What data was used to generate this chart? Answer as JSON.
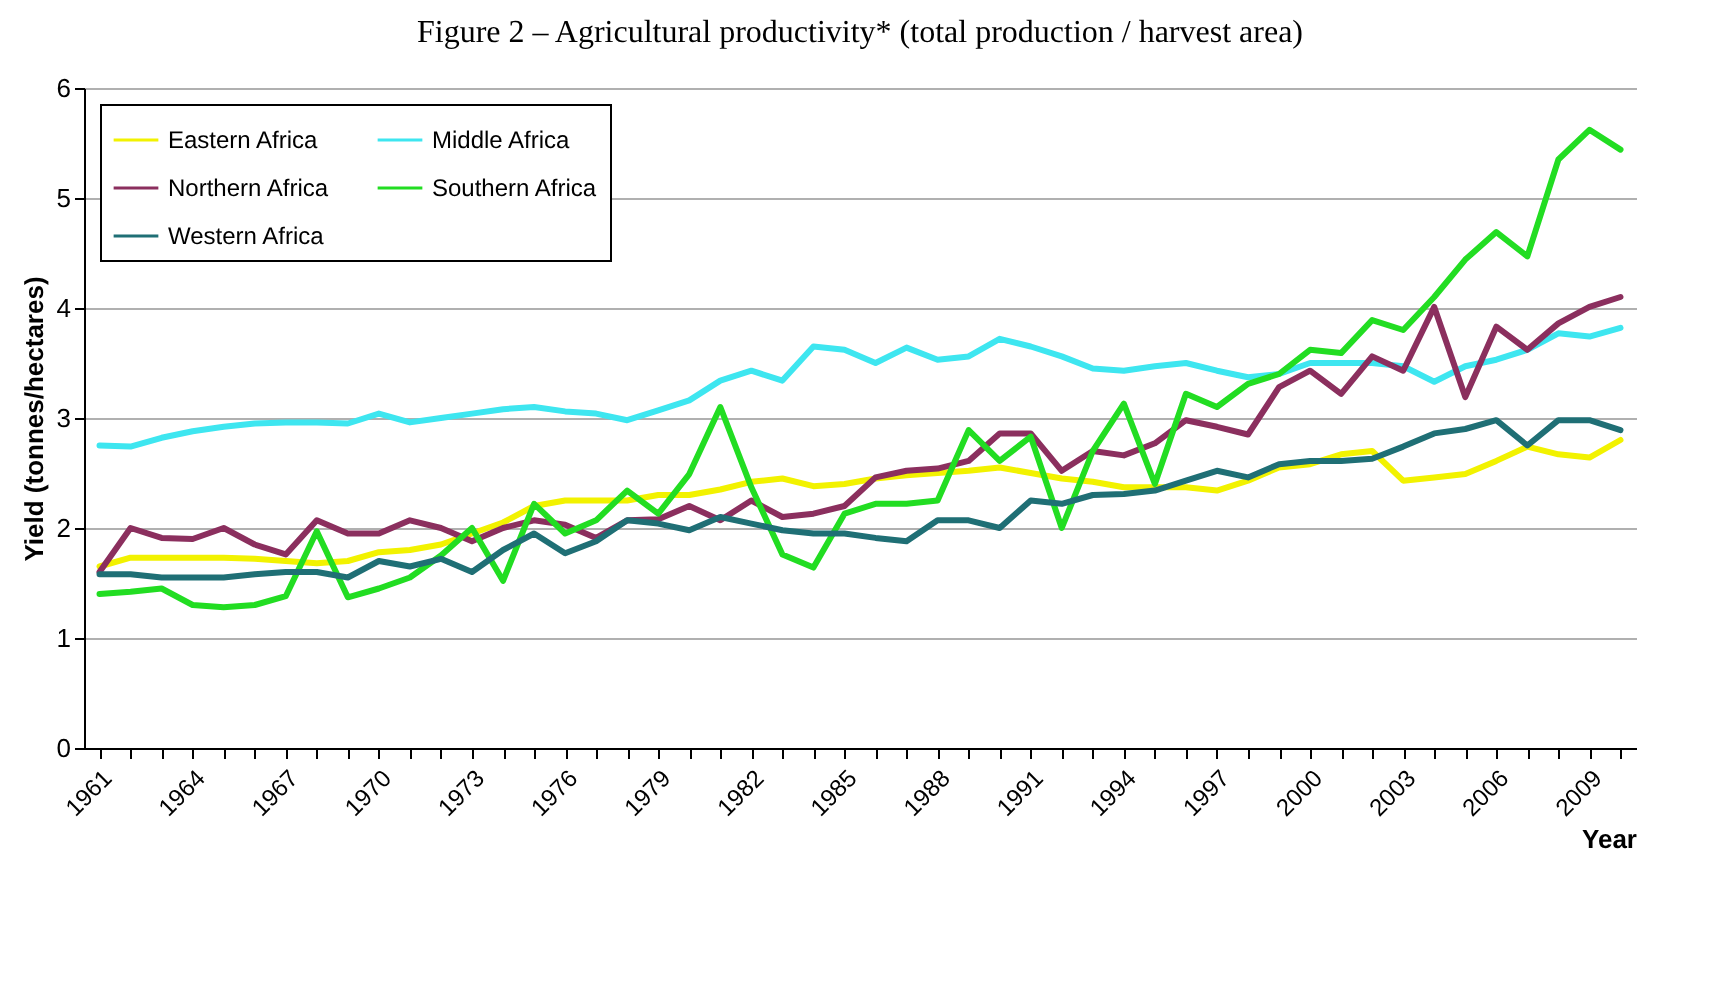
{
  "chart_data": {
    "type": "line",
    "title": "Figure 2 – Agricultural productivity* (total production / harvest area)",
    "xlabel": "Year",
    "ylabel": "Yield (tonnes/hectares)",
    "categories": [
      "1961",
      null,
      null,
      "1964",
      null,
      null,
      "1967",
      null,
      null,
      "1970",
      null,
      null,
      "1973",
      null,
      null,
      "1976",
      null,
      null,
      "1979",
      null,
      null,
      "1982",
      null,
      null,
      "1985",
      null,
      null,
      "1988",
      null,
      null,
      "1991",
      null,
      null,
      "1994",
      null,
      null,
      "1997",
      null,
      null,
      "2000",
      null,
      null,
      "2003",
      null,
      null,
      "2006",
      null,
      null,
      "2009",
      null
    ],
    "series": [
      {
        "name": "Eastern Africa",
        "color": "#f2f200",
        "values": [
          1.65,
          1.73,
          1.73,
          1.73,
          1.73,
          1.72,
          1.7,
          1.68,
          1.7,
          1.78,
          1.8,
          1.85,
          1.95,
          2.05,
          2.2,
          2.25,
          2.25,
          2.25,
          2.3,
          2.3,
          2.35,
          2.42,
          2.45,
          2.38,
          2.4,
          2.45,
          2.48,
          2.5,
          2.52,
          2.55,
          2.5,
          2.45,
          2.42,
          2.37,
          2.37,
          2.37,
          2.34,
          2.43,
          2.55,
          2.58,
          2.67,
          2.7,
          2.43,
          2.46,
          2.49,
          2.61,
          2.74,
          2.67,
          2.64,
          2.8
        ]
      },
      {
        "name": "Middle Africa",
        "color": "#3ee6f0",
        "values": [
          2.75,
          2.74,
          2.82,
          2.88,
          2.92,
          2.95,
          2.96,
          2.96,
          2.95,
          3.04,
          2.96,
          3.0,
          3.04,
          3.08,
          3.1,
          3.06,
          3.04,
          2.98,
          3.07,
          3.16,
          3.34,
          3.43,
          3.34,
          3.65,
          3.62,
          3.5,
          3.64,
          3.53,
          3.56,
          3.72,
          3.65,
          3.56,
          3.45,
          3.43,
          3.47,
          3.5,
          3.43,
          3.37,
          3.4,
          3.5,
          3.5,
          3.5,
          3.47,
          3.33,
          3.47,
          3.53,
          3.62,
          3.77,
          3.74,
          3.82
        ]
      },
      {
        "name": "Northern Africa",
        "color": "#8b2f5e",
        "values": [
          1.6,
          2.0,
          1.91,
          1.9,
          2.0,
          1.85,
          1.76,
          2.07,
          1.95,
          1.95,
          2.07,
          2.0,
          1.88,
          2.0,
          2.07,
          2.03,
          1.91,
          2.07,
          2.08,
          2.2,
          2.07,
          2.25,
          2.1,
          2.13,
          2.2,
          2.46,
          2.52,
          2.54,
          2.61,
          2.86,
          2.86,
          2.52,
          2.7,
          2.66,
          2.77,
          2.98,
          2.92,
          2.85,
          3.28,
          3.43,
          3.22,
          3.56,
          3.43,
          4.01,
          3.19,
          3.83,
          3.62,
          3.86,
          4.01,
          4.1
        ]
      },
      {
        "name": "Southern Africa",
        "color": "#22dd22",
        "values": [
          1.4,
          1.42,
          1.45,
          1.3,
          1.28,
          1.3,
          1.38,
          1.97,
          1.37,
          1.45,
          1.55,
          1.75,
          2.0,
          1.52,
          2.22,
          1.95,
          2.07,
          2.34,
          2.13,
          2.49,
          3.1,
          2.37,
          1.76,
          1.64,
          2.13,
          2.22,
          2.22,
          2.25,
          2.89,
          2.61,
          2.83,
          2.0,
          2.7,
          3.13,
          2.4,
          3.22,
          3.1,
          3.31,
          3.4,
          3.62,
          3.59,
          3.89,
          3.8,
          4.1,
          4.44,
          4.69,
          4.47,
          5.35,
          5.62,
          5.44
        ]
      },
      {
        "name": "Western Africa",
        "color": "#1f6f75",
        "values": [
          1.58,
          1.58,
          1.55,
          1.55,
          1.55,
          1.58,
          1.6,
          1.6,
          1.55,
          1.7,
          1.65,
          1.72,
          1.6,
          1.8,
          1.95,
          1.77,
          1.88,
          2.07,
          2.04,
          1.98,
          2.1,
          2.04,
          1.98,
          1.95,
          1.95,
          1.91,
          1.88,
          2.07,
          2.07,
          2.0,
          2.25,
          2.22,
          2.3,
          2.31,
          2.34,
          2.43,
          2.52,
          2.46,
          2.58,
          2.61,
          2.61,
          2.63,
          2.74,
          2.86,
          2.9,
          2.98,
          2.75,
          2.98,
          2.98,
          2.89
        ]
      }
    ],
    "ylim": [
      0,
      6
    ],
    "yticks": [
      0,
      1,
      2,
      3,
      4,
      5,
      6
    ],
    "grid": "y",
    "legend": "top left",
    "marker": "none",
    "line_style": "solid"
  }
}
